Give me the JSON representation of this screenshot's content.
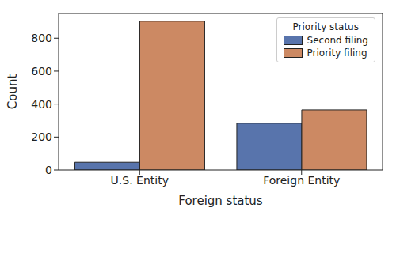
{
  "chart_data": {
    "type": "bar",
    "categories": [
      "U.S. Entity",
      "Foreign Entity"
    ],
    "series": [
      {
        "name": "Second filing",
        "color": "#5874ac",
        "values": [
          47,
          284
        ]
      },
      {
        "name": "Priority filing",
        "color": "#cc8963",
        "values": [
          903,
          365
        ]
      }
    ],
    "x_label": "Foreign status",
    "y_label": "Count",
    "legend_title": "Priority status",
    "legend": "upper right",
    "ylim": [
      0,
      950
    ],
    "yticks": [
      0,
      200,
      400,
      600,
      800
    ],
    "grid": false
  }
}
